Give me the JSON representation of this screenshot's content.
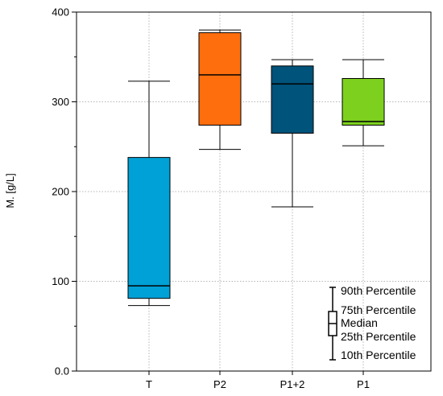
{
  "chart_data": {
    "type": "box",
    "ylabel": "M.  [g/L]",
    "ylim": [
      0,
      400
    ],
    "yticks": [
      0,
      100,
      200,
      300,
      400
    ],
    "ytick_labels": [
      "0.0",
      "100",
      "200",
      "300",
      "400"
    ],
    "categories": [
      "T",
      "P2",
      "P1+2",
      "P1"
    ],
    "grid": true,
    "boxes": [
      {
        "category": "T",
        "p10": 73,
        "p25": 81,
        "median": 95,
        "p75": 238,
        "p90": 323,
        "color": "#00a1d6"
      },
      {
        "category": "P2",
        "p10": 247,
        "p25": 274,
        "median": 330,
        "p75": 377,
        "p90": 380,
        "color": "#ff6e0d"
      },
      {
        "category": "P1+2",
        "p10": 183,
        "p25": 265,
        "median": 320,
        "p75": 340,
        "p90": 347,
        "color": "#00537a"
      },
      {
        "category": "P1",
        "p10": 251,
        "p25": 274,
        "median": 278,
        "p75": 326,
        "p90": 347,
        "color": "#7dd11e"
      }
    ],
    "legend": {
      "position": "bottom-right",
      "labels": [
        "90th Percentile",
        "75th Percentile",
        "Median",
        "25th Percentile",
        "10th Percentile"
      ]
    }
  }
}
